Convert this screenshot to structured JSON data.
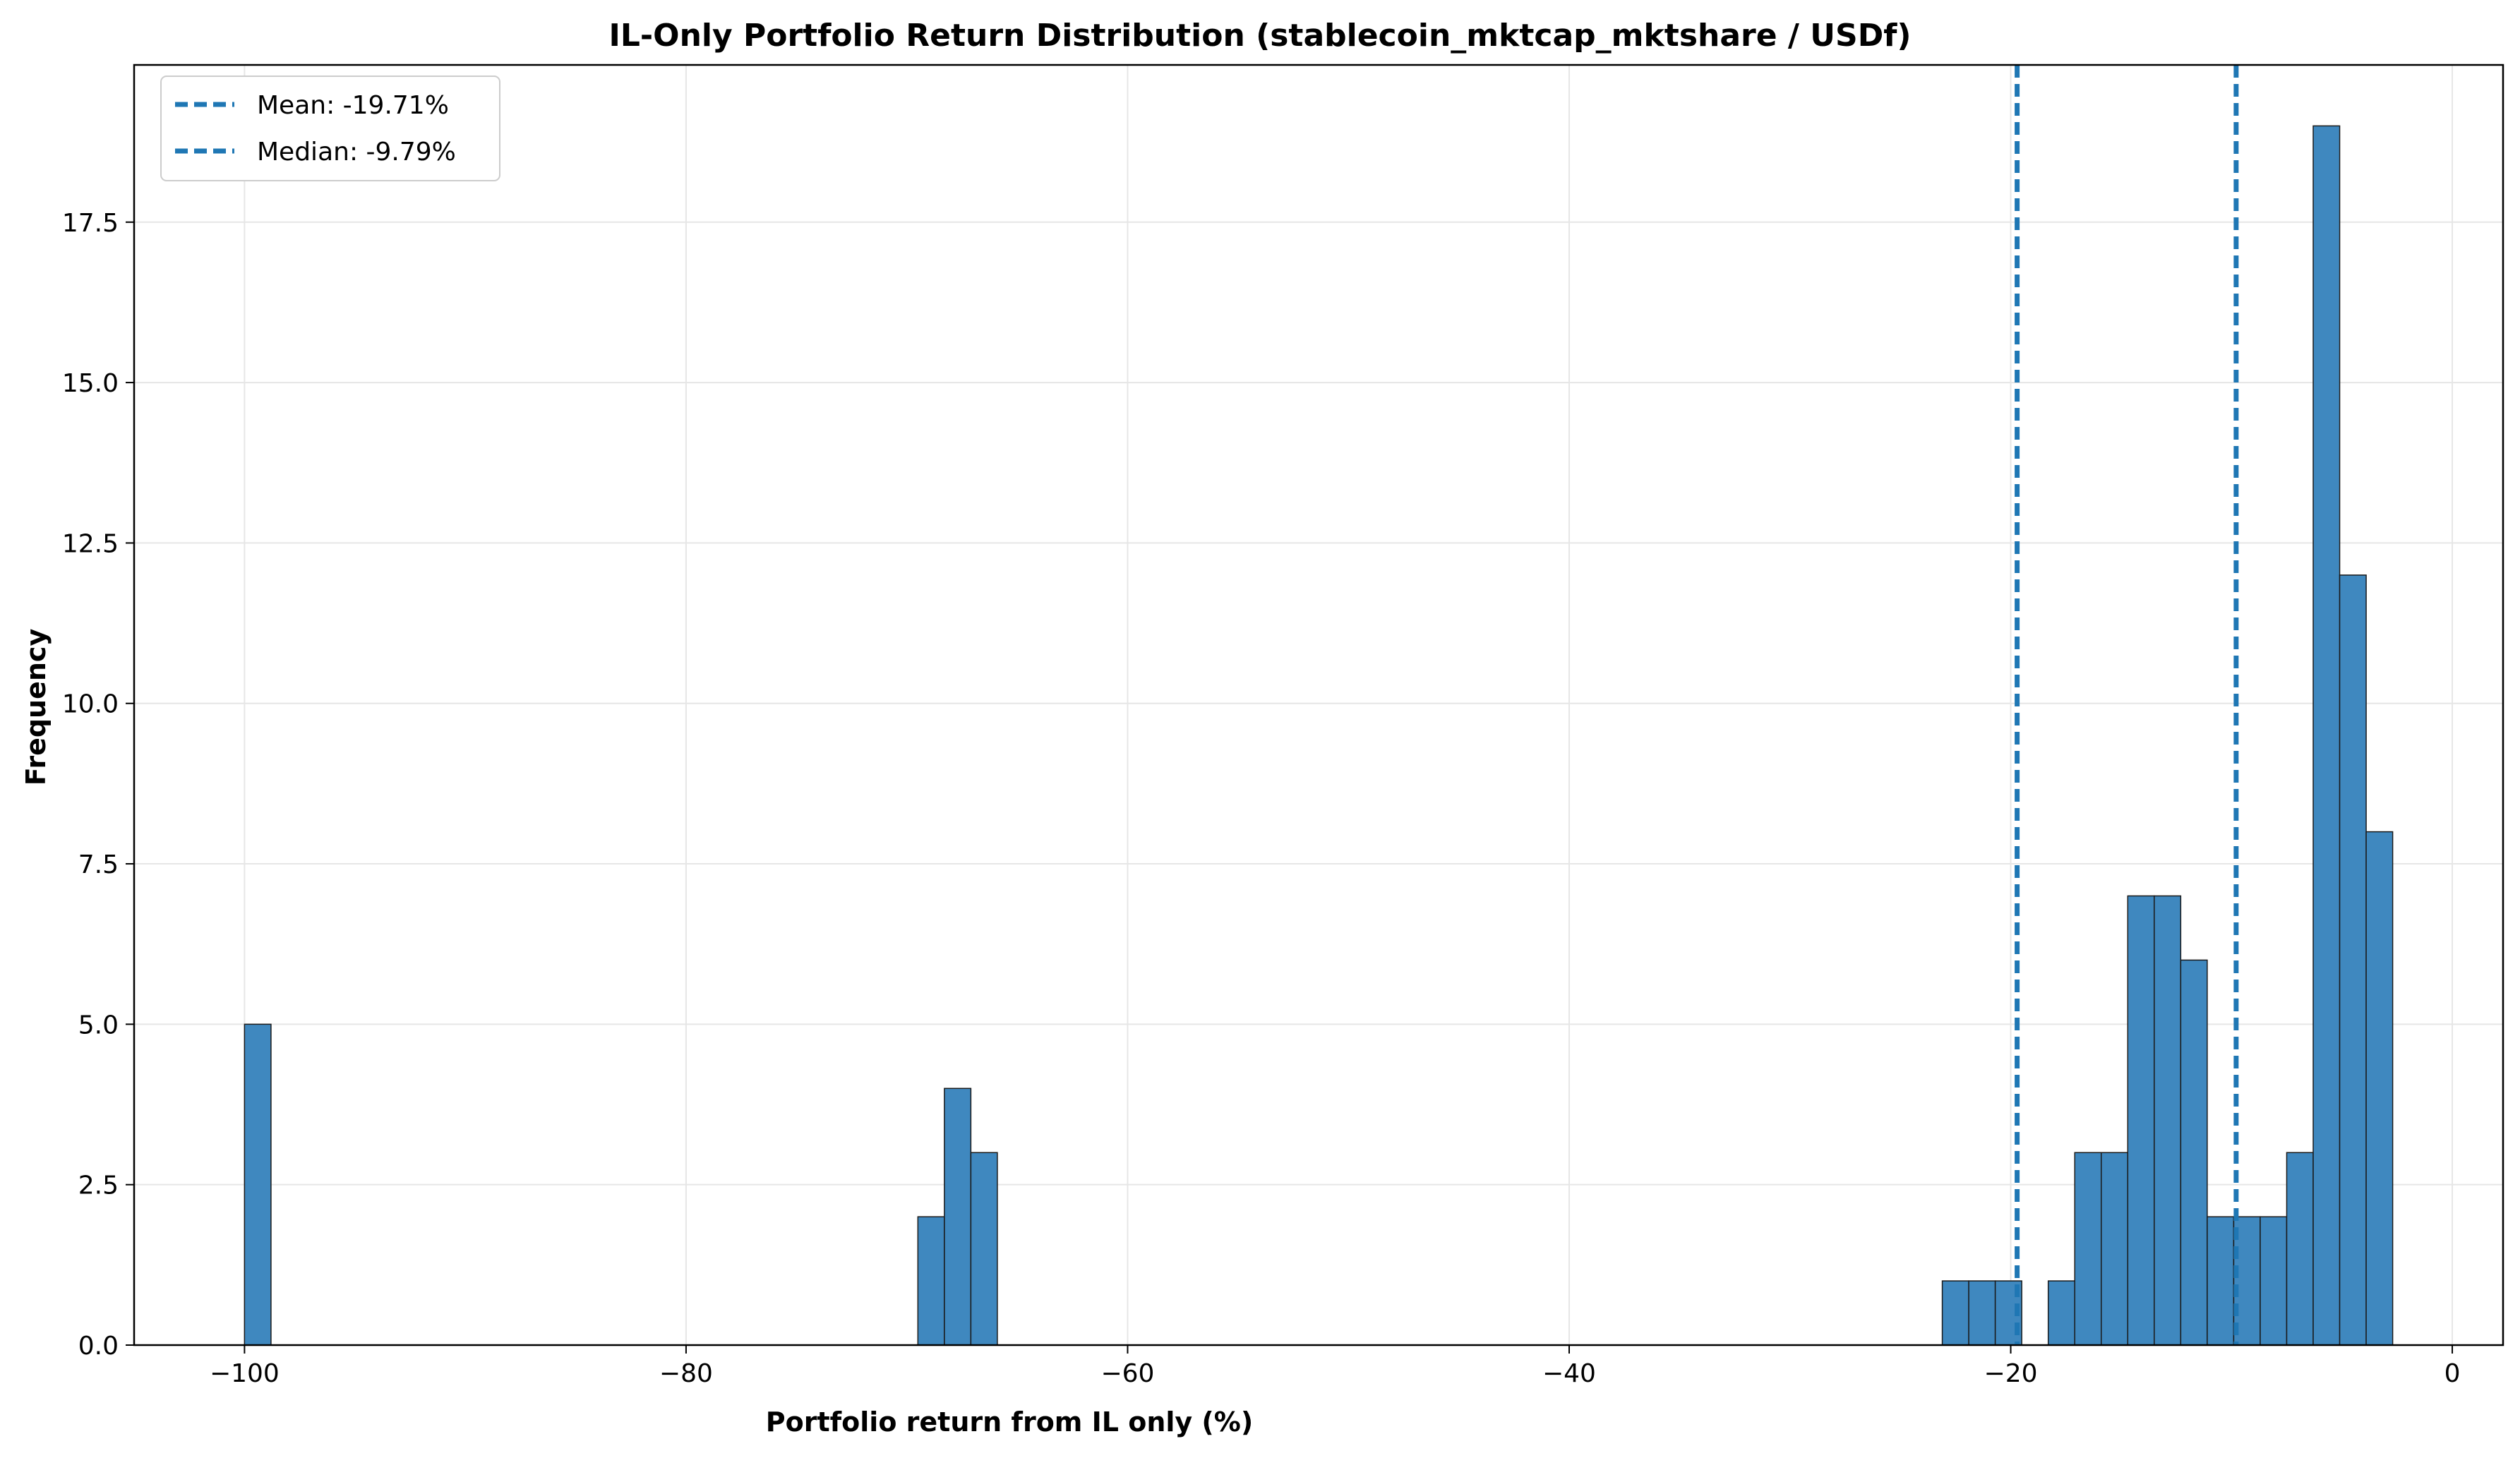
{
  "chart_data": {
    "type": "bar",
    "title": "IL-Only Portfolio Return Distribution (stablecoin_mktcap_mktshare / USDf)",
    "xlabel": "Portfolio return from IL only (%)",
    "ylabel": "Frequency",
    "xlim": [
      -105,
      2.3
    ],
    "ylim": [
      0,
      19.95
    ],
    "x_ticks": [
      -100,
      -80,
      -60,
      -40,
      -20,
      0
    ],
    "x_tick_labels": [
      "−100",
      "−80",
      "−60",
      "−40",
      "−20",
      "0"
    ],
    "y_ticks": [
      0,
      2.5,
      5,
      7.5,
      10,
      12.5,
      15,
      17.5
    ],
    "y_tick_labels": [
      "0.0",
      "2.5",
      "5.0",
      "7.5",
      "10.0",
      "12.5",
      "15.0",
      "17.5"
    ],
    "grid": true,
    "bin_width": 1.2,
    "bins": [
      {
        "x0": -100.0,
        "count": 5
      },
      {
        "x0": -69.5,
        "count": 2
      },
      {
        "x0": -68.3,
        "count": 4
      },
      {
        "x0": -67.1,
        "count": 3
      },
      {
        "x0": -23.1,
        "count": 1
      },
      {
        "x0": -21.9,
        "count": 1
      },
      {
        "x0": -20.7,
        "count": 1
      },
      {
        "x0": -18.3,
        "count": 1
      },
      {
        "x0": -17.1,
        "count": 3
      },
      {
        "x0": -15.9,
        "count": 3
      },
      {
        "x0": -14.7,
        "count": 7
      },
      {
        "x0": -13.5,
        "count": 7
      },
      {
        "x0": -12.3,
        "count": 6
      },
      {
        "x0": -11.1,
        "count": 2
      },
      {
        "x0": -9.9,
        "count": 2
      },
      {
        "x0": -8.7,
        "count": 2
      },
      {
        "x0": -7.5,
        "count": 3
      },
      {
        "x0": -6.3,
        "count": 19
      },
      {
        "x0": -5.1,
        "count": 12
      },
      {
        "x0": -3.9,
        "count": 8
      }
    ],
    "vlines": [
      {
        "x": -19.71,
        "label": "Mean: -19.71%"
      },
      {
        "x": -9.79,
        "label": "Median: -9.79%"
      }
    ],
    "legend_position": "top-left",
    "colors": {
      "bar_fill": "#3f88bf",
      "bar_edge": "#1a1a1a",
      "vline": "#1f77b4",
      "grid": "#e6e6e6"
    }
  }
}
